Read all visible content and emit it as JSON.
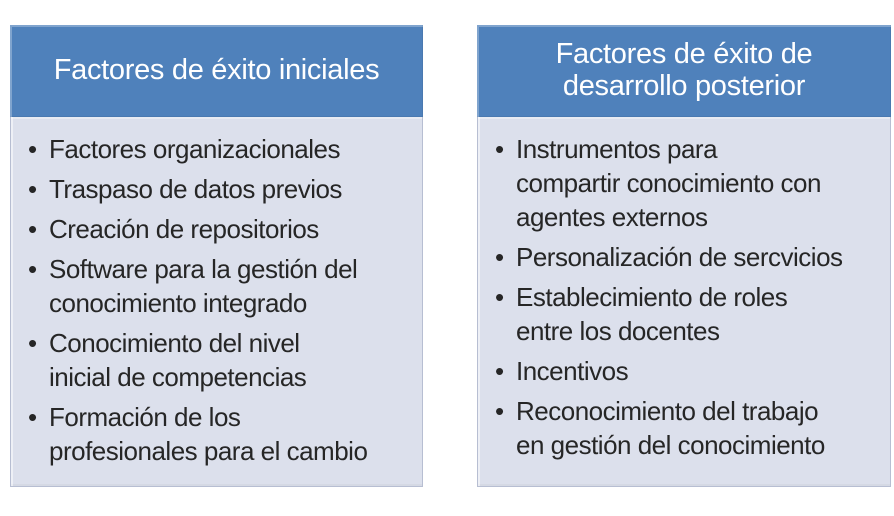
{
  "colors": {
    "header_bg": "#4f81bb",
    "header_text": "#ffffff",
    "body_bg": "#dce0ec",
    "body_border": "#b7bed2",
    "body_text": "#262626"
  },
  "bullet_glyph": "•",
  "panels": [
    {
      "title": "Factores de éxito iniciales",
      "items": [
        "Factores organizacionales",
        "Traspaso de datos previos",
        "Creación de repositorios",
        "Software para la gestión del\nconocimiento integrado",
        "Conocimiento del nivel\ninicial de competencias",
        "Formación de los\nprofesionales para el cambio"
      ]
    },
    {
      "title": "Factores de éxito de\ndesarrollo posterior",
      "items": [
        "Instrumentos para\ncompartir conocimiento con\nagentes externos",
        "Personalización de sercvicios",
        "Establecimiento de roles\nentre los docentes",
        "Incentivos",
        "Reconocimiento del trabajo\nen gestión del conocimiento"
      ]
    }
  ]
}
